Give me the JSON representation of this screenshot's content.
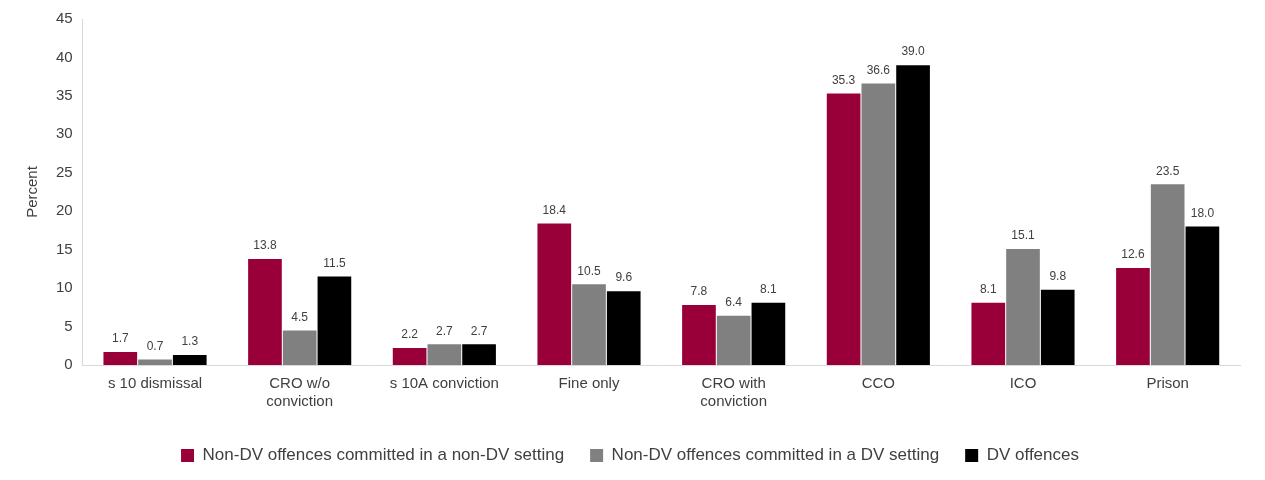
{
  "chart_data": {
    "type": "bar",
    "y_label": "Percent",
    "categories": [
      "s 10 dismissal",
      "CRO w/o conviction",
      "s 10A conviction",
      "Fine only",
      "CRO with conviction",
      "CCO",
      "ICO",
      "Prison"
    ],
    "series": [
      {
        "name": "Non-DV offences committed in a non-DV setting",
        "color": "#99003a",
        "values": [
          1.7,
          13.8,
          2.2,
          18.4,
          7.8,
          35.3,
          8.1,
          12.6
        ],
        "value_labels": [
          "1.7",
          "13.8",
          "2.2",
          "18.4",
          "7.8",
          "35.3",
          "8.1",
          "12.6"
        ]
      },
      {
        "name": "Non-DV offences committed in a DV setting",
        "color": "#808080",
        "values": [
          0.7,
          4.5,
          2.7,
          10.5,
          6.4,
          36.6,
          15.1,
          23.5
        ],
        "value_labels": [
          "0.7",
          "4.5",
          "2.7",
          "10.5",
          "6.4",
          "36.6",
          "15.1",
          "23.5"
        ]
      },
      {
        "name": "DV offences",
        "color": "#000000",
        "values": [
          1.3,
          11.5,
          2.7,
          9.6,
          8.1,
          39.0,
          9.8,
          18.0
        ],
        "value_labels": [
          "1.3",
          "11.5",
          "2.7",
          "9.6",
          "8.1",
          "39.0",
          "9.8",
          "18.0"
        ]
      }
    ],
    "ylim": [
      0,
      45
    ],
    "yticks": [
      0,
      5,
      10,
      15,
      20,
      25,
      30,
      35,
      40,
      45
    ],
    "grid": false,
    "legend": "bottom",
    "data_labels": true
  }
}
